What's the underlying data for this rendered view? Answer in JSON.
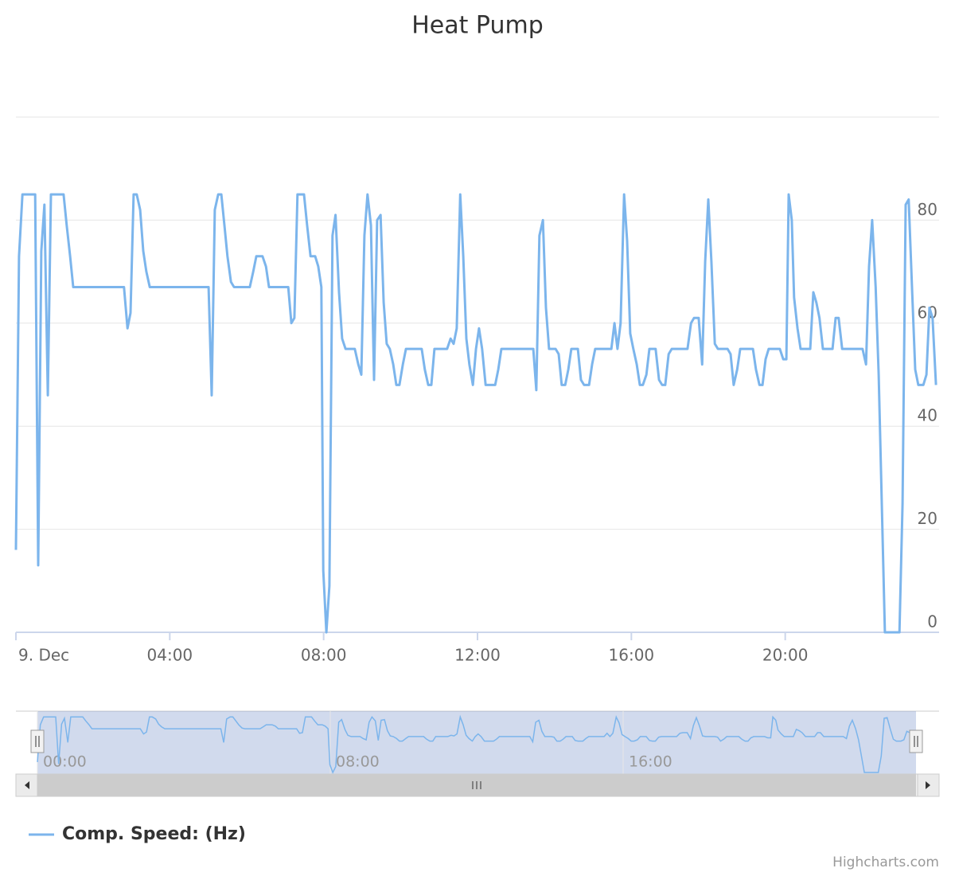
{
  "chart_data": {
    "type": "line",
    "title": "Heat Pump",
    "x": [
      0,
      0.08,
      0.17,
      0.41,
      0.5,
      0.58,
      0.66,
      0.74,
      0.83,
      0.91,
      1.24,
      1.32,
      1.41,
      1.49,
      2.81,
      2.9,
      2.98,
      3.06,
      3.14,
      3.23,
      3.31,
      3.39,
      3.48,
      5.01,
      5.09,
      5.17,
      5.26,
      5.34,
      5.42,
      5.5,
      5.59,
      5.67,
      6.08,
      6.17,
      6.25,
      6.41,
      6.5,
      6.58,
      7.08,
      7.16,
      7.24,
      7.32,
      7.49,
      7.57,
      7.66,
      7.78,
      7.86,
      7.94,
      7.99,
      8.07,
      8.15,
      8.23,
      8.31,
      8.4,
      8.48,
      8.57,
      8.81,
      8.9,
      8.98,
      9.06,
      9.14,
      9.23,
      9.31,
      9.39,
      9.48,
      9.56,
      9.64,
      9.72,
      9.81,
      9.89,
      9.97,
      10.06,
      10.14,
      10.55,
      10.63,
      10.72,
      10.8,
      10.88,
      11.21,
      11.3,
      11.38,
      11.46,
      11.55,
      11.63,
      11.71,
      11.79,
      11.88,
      11.96,
      12.04,
      12.12,
      12.21,
      12.46,
      12.54,
      12.62,
      13.45,
      13.53,
      13.61,
      13.7,
      13.78,
      13.86,
      14.03,
      14.11,
      14.19,
      14.28,
      14.36,
      14.44,
      14.61,
      14.69,
      14.77,
      14.9,
      14.98,
      15.06,
      15.48,
      15.56,
      15.64,
      15.72,
      15.81,
      15.89,
      15.97,
      16.05,
      16.14,
      16.22,
      16.3,
      16.39,
      16.47,
      16.63,
      16.72,
      16.8,
      16.88,
      16.97,
      17.05,
      17.46,
      17.55,
      17.63,
      17.75,
      17.84,
      17.92,
      18.0,
      18.08,
      18.17,
      18.25,
      18.5,
      18.58,
      18.66,
      18.75,
      18.83,
      19.16,
      19.24,
      19.33,
      19.41,
      19.49,
      19.57,
      19.86,
      19.95,
      20.03,
      20.09,
      20.17,
      20.23,
      20.32,
      20.4,
      20.65,
      20.73,
      20.81,
      20.89,
      20.98,
      21.23,
      21.31,
      21.39,
      21.48,
      22.01,
      22.1,
      22.18,
      22.26,
      22.35,
      22.43,
      22.59,
      22.97,
      23.05,
      23.13,
      23.21,
      23.3,
      23.38,
      23.46,
      23.59,
      23.67,
      23.75,
      23.83,
      23.92
    ],
    "series": [
      {
        "name": "Comp. Speed: (Hz)",
        "color": "#7cb5ec",
        "values": [
          16,
          73,
          85,
          85,
          85,
          13,
          74,
          83,
          46,
          85,
          85,
          79,
          73,
          67,
          67,
          59,
          62,
          85,
          85,
          82,
          74,
          70,
          67,
          67,
          46,
          82,
          85,
          85,
          79,
          73,
          68,
          67,
          67,
          70,
          73,
          73,
          71,
          67,
          67,
          60,
          61,
          85,
          85,
          79,
          73,
          73,
          71,
          67,
          12,
          0,
          9,
          77,
          81,
          66,
          57,
          55,
          55,
          52,
          50,
          77,
          85,
          79,
          49,
          80,
          81,
          64,
          56,
          55,
          52,
          48,
          48,
          52,
          55,
          55,
          51,
          48,
          48,
          55,
          55,
          57,
          56,
          59,
          85,
          73,
          57,
          52,
          48,
          55,
          59,
          55,
          48,
          48,
          51,
          55,
          55,
          47,
          77,
          80,
          63,
          55,
          55,
          54,
          48,
          48,
          51,
          55,
          55,
          49,
          48,
          48,
          52,
          55,
          55,
          60,
          55,
          60,
          85,
          76,
          58,
          55,
          52,
          48,
          48,
          50,
          55,
          55,
          49,
          48,
          48,
          54,
          55,
          55,
          60,
          61,
          61,
          52,
          72,
          84,
          72,
          56,
          55,
          55,
          54,
          48,
          51,
          55,
          55,
          51,
          48,
          48,
          53,
          55,
          55,
          53,
          53,
          85,
          80,
          65,
          59,
          55,
          55,
          66,
          64,
          61,
          55,
          55,
          61,
          61,
          55,
          55,
          52,
          71,
          80,
          67,
          50,
          0,
          0,
          25,
          83,
          84,
          66,
          51,
          48,
          48,
          50,
          63,
          61,
          48
        ]
      }
    ],
    "xlim": [
      0,
      24
    ],
    "xticks": [
      {
        "value": 0,
        "label": "9. Dec"
      },
      {
        "value": 4,
        "label": "04:00"
      },
      {
        "value": 8,
        "label": "08:00"
      },
      {
        "value": 12,
        "label": "12:00"
      },
      {
        "value": 16,
        "label": "16:00"
      },
      {
        "value": 20,
        "label": "20:00"
      }
    ],
    "ylim": [
      0,
      100
    ],
    "yticks": [
      0,
      20,
      40,
      60,
      80
    ],
    "grid": true,
    "navigator": {
      "xticks": [
        {
          "value": 0,
          "label": "00:00"
        },
        {
          "value": 8,
          "label": "08:00"
        },
        {
          "value": 16,
          "label": "16:00"
        }
      ]
    },
    "credits": "Highcharts.com"
  }
}
